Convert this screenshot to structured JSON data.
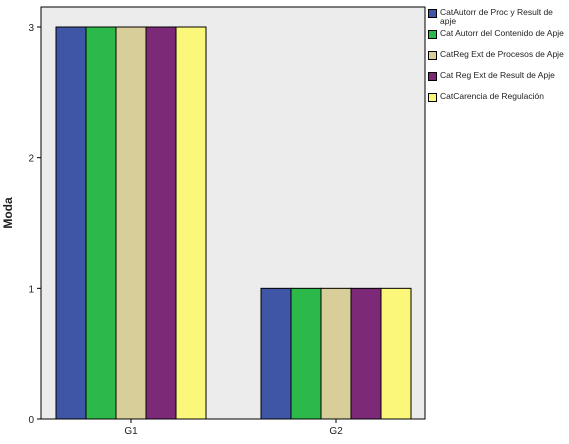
{
  "chart_data": {
    "type": "bar",
    "title": "",
    "xlabel": "",
    "ylabel": "Moda",
    "categories": [
      "G1",
      "G2"
    ],
    "yticks": [
      "0",
      "1",
      "2",
      "3"
    ],
    "ylim": [
      0,
      3
    ],
    "grid": false,
    "legend_position": "right",
    "series": [
      {
        "name": "CatAutorr de Proc y Result de apje",
        "color": "#3f55a5",
        "values": [
          3,
          1
        ]
      },
      {
        "name": "Cat Autorr del Contenido de Apje",
        "color": "#2db84a",
        "values": [
          3,
          1
        ]
      },
      {
        "name": "CatReg Ext de Procesos de Apje",
        "color": "#d8ce9a",
        "values": [
          3,
          1
        ]
      },
      {
        "name": "Cat Reg Ext de Result de Apje",
        "color": "#7c2a78",
        "values": [
          3,
          1
        ]
      },
      {
        "name": "CatCarencia de Regulación",
        "color": "#fbf77a",
        "values": [
          3,
          1
        ]
      }
    ],
    "plot_background": "#ececec"
  }
}
